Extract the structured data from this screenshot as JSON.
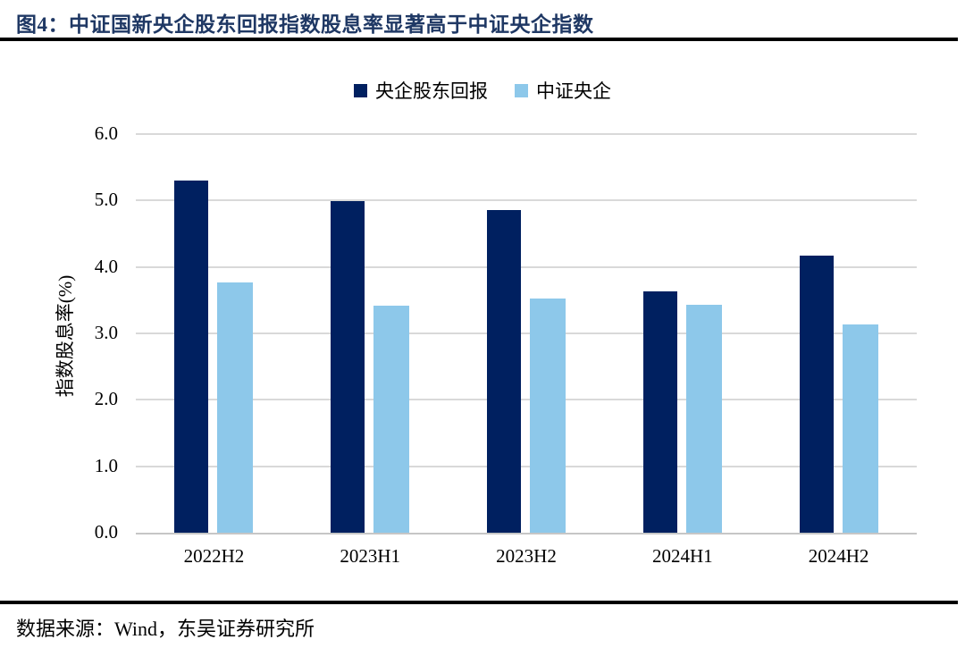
{
  "figure": {
    "title": "图4：中证国新央企股东回报指数股息率显著高于中证央企指数",
    "source": "数据来源：Wind，东吴证券研究所"
  },
  "chart_data": {
    "type": "bar",
    "title": "图4：中证国新央企股东回报指数股息率显著高于中证央企指数",
    "categories": [
      "2022H2",
      "2023H1",
      "2023H2",
      "2024H1",
      "2024H2"
    ],
    "series": [
      {
        "name": "央企股东回报",
        "color": "#002060",
        "values": [
          5.3,
          4.99,
          4.85,
          3.63,
          4.17
        ]
      },
      {
        "name": "中证央企",
        "color": "#8DC8EA",
        "values": [
          3.77,
          3.42,
          3.52,
          3.43,
          3.13
        ]
      }
    ],
    "xlabel": "",
    "ylabel": "指数股息率(%)",
    "ylim": [
      0,
      6
    ],
    "ytick_step": 1.0,
    "ytick_labels": [
      "0.0",
      "1.0",
      "2.0",
      "3.0",
      "4.0",
      "5.0",
      "6.0"
    ],
    "grid": true,
    "gridline_color": "#D9D9D9",
    "legend_position": "top-center"
  },
  "colors": {
    "title_text": "#1F3864",
    "series_dark": "#002060",
    "series_light": "#8DC8EA",
    "rule": "#000000",
    "gridline": "#D9D9D9",
    "axis_line": "#C6C6C6"
  }
}
